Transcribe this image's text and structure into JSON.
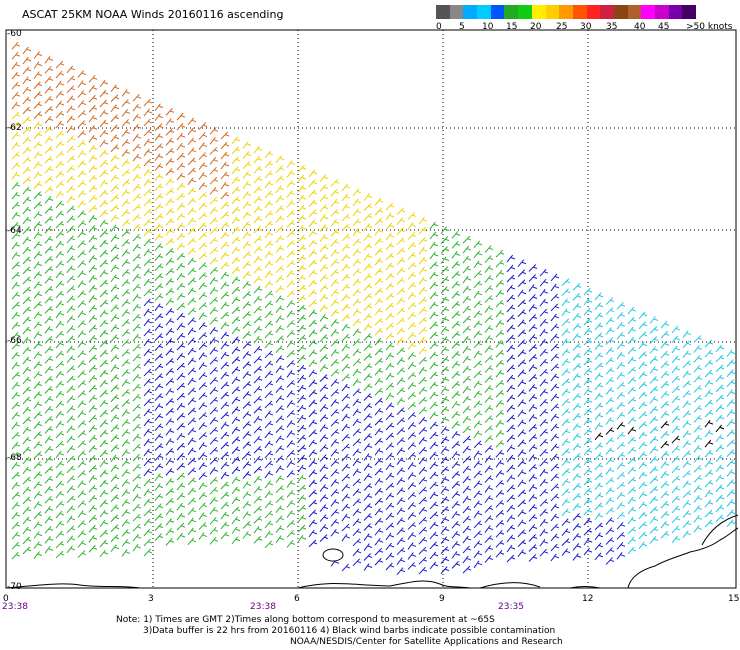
{
  "title": "ASCAT 25KM NOAA Winds 20160116 ascending",
  "colorbar": {
    "colors": [
      "#555555",
      "#888888",
      "#00aaff",
      "#00ccff",
      "#0055ff",
      "#22aa22",
      "#11cc11",
      "#ffee00",
      "#ffcc00",
      "#ff9900",
      "#ff5500",
      "#ff2222",
      "#d02040",
      "#8b4513",
      "#b06030",
      "#ff00ff",
      "#cc00cc",
      "#7700aa",
      "#440066"
    ],
    "labels": [
      "0",
      "5",
      "10",
      "15",
      "20",
      "25",
      "30",
      "35",
      "40",
      "45",
      ">50 knots"
    ]
  },
  "axes": {
    "x_ticks": [
      "0",
      "3",
      "6",
      "9",
      "12",
      "15"
    ],
    "y_ticks": [
      "-60",
      "-62",
      "-64",
      "-66",
      "-68",
      "-70"
    ],
    "times": [
      "23:38",
      "23:38",
      "23:35"
    ]
  },
  "notes": [
    "Note: 1) Times are GMT 2)Times along bottom correspond to measurement at ~65S",
    "3)Data buffer is 22 hrs from 20160116 4) Black wind barbs indicate possible contamination",
    "NOAA/NESDIS/Center for Satellite Applications and Research"
  ],
  "barb_colors": {
    "orange": "#d2691e",
    "yellow": "#f0d200",
    "green": "#2ab52a",
    "blue": "#1a1ad0",
    "cyan": "#20c8e0",
    "black": "#000000"
  }
}
